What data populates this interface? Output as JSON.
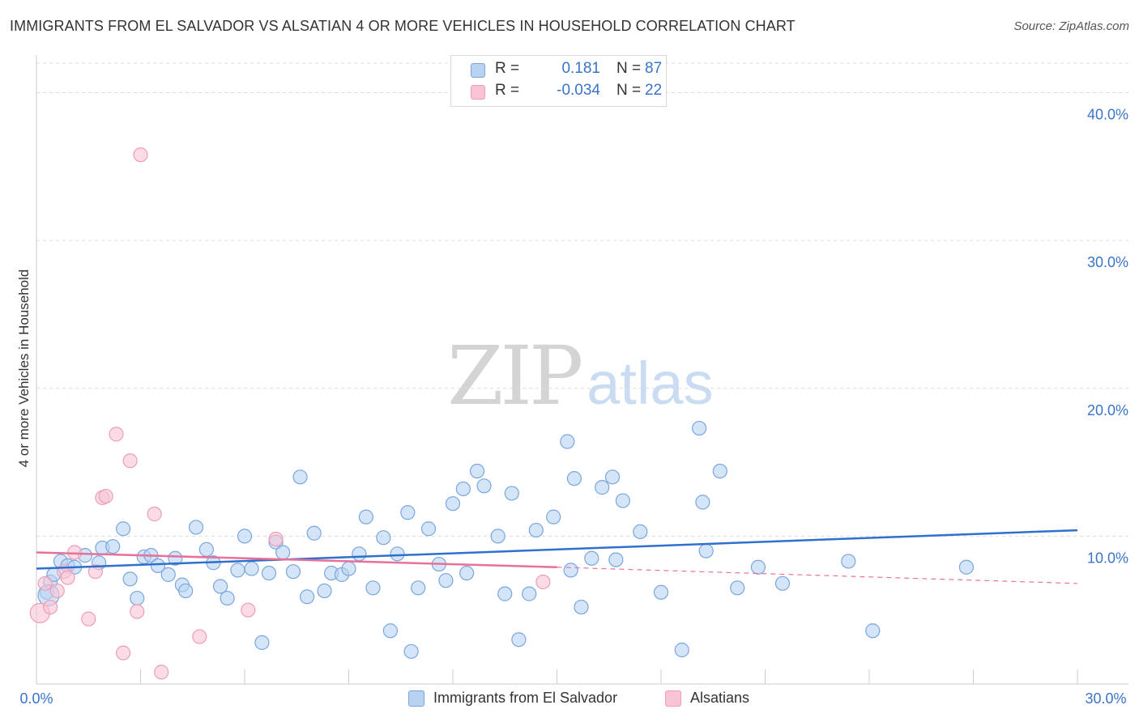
{
  "title": "IMMIGRANTS FROM EL SALVADOR VS ALSATIAN 4 OR MORE VEHICLES IN HOUSEHOLD CORRELATION CHART",
  "source": "Source: ZipAtlas.com",
  "watermark": {
    "zip": "ZIP",
    "atlas": "atlas"
  },
  "legend": {
    "rows": [
      {
        "r_label": "R =",
        "r_value": "0.181",
        "n_label": "N =",
        "n_value": "87"
      },
      {
        "r_label": "R =",
        "r_value": "-0.034",
        "n_label": "N =",
        "n_value": "22"
      }
    ]
  },
  "bottom_legend": {
    "blue": "Immigrants from El Salvador",
    "pink": "Alsatians"
  },
  "colors": {
    "blue_fill": "#b8d3f2",
    "blue_stroke": "#7aa6de",
    "blue_line": "#2f6fce",
    "pink_fill": "#f8c4d5",
    "pink_stroke": "#ee9cb8",
    "pink_line": "#e8709a",
    "tick_text": "#3a74c8",
    "grid": "#dcdcdc"
  },
  "chart_data": {
    "type": "scatter",
    "title": "IMMIGRANTS FROM EL SALVADOR VS ALSATIAN 4 OR MORE VEHICLES IN HOUSEHOLD CORRELATION CHART",
    "xlabel": "",
    "ylabel": "4 or more Vehicles in Household",
    "xlim": [
      0,
      30
    ],
    "ylim": [
      0,
      42
    ],
    "x_tick_labels": [
      "0.0%",
      "30.0%"
    ],
    "y_ticks": [
      10,
      20,
      30,
      40
    ],
    "y_tick_labels": [
      "10.0%",
      "20.0%",
      "30.0%",
      "40.0%"
    ],
    "grid": true,
    "legend_position": "top-center",
    "series": [
      {
        "name": "Immigrants from El Salvador",
        "color": "#b8d3f2",
        "points": [
          [
            0.3,
            6.2
          ],
          [
            0.4,
            6.9
          ],
          [
            0.5,
            7.4
          ],
          [
            0.7,
            8.3
          ],
          [
            0.9,
            8.0
          ],
          [
            1.1,
            7.9
          ],
          [
            1.4,
            8.7
          ],
          [
            1.8,
            8.2
          ],
          [
            1.9,
            9.2
          ],
          [
            2.2,
            9.3
          ],
          [
            2.5,
            10.5
          ],
          [
            2.7,
            7.1
          ],
          [
            2.9,
            5.8
          ],
          [
            3.1,
            8.6
          ],
          [
            3.3,
            8.7
          ],
          [
            3.5,
            8.0
          ],
          [
            3.8,
            7.4
          ],
          [
            4.0,
            8.5
          ],
          [
            4.2,
            6.7
          ],
          [
            4.3,
            6.3
          ],
          [
            4.6,
            10.6
          ],
          [
            4.9,
            9.1
          ],
          [
            5.1,
            8.2
          ],
          [
            5.3,
            6.6
          ],
          [
            5.5,
            5.8
          ],
          [
            5.8,
            7.7
          ],
          [
            6.0,
            10.0
          ],
          [
            6.2,
            7.8
          ],
          [
            6.5,
            2.8
          ],
          [
            6.7,
            7.5
          ],
          [
            6.9,
            9.6
          ],
          [
            7.1,
            8.9
          ],
          [
            7.4,
            7.6
          ],
          [
            7.6,
            14.0
          ],
          [
            7.8,
            5.9
          ],
          [
            8.0,
            10.2
          ],
          [
            8.3,
            6.3
          ],
          [
            8.5,
            7.5
          ],
          [
            8.8,
            7.4
          ],
          [
            9.0,
            7.8
          ],
          [
            9.3,
            8.8
          ],
          [
            9.5,
            11.3
          ],
          [
            9.7,
            6.5
          ],
          [
            10.0,
            9.9
          ],
          [
            10.2,
            3.6
          ],
          [
            10.4,
            8.8
          ],
          [
            10.7,
            11.6
          ],
          [
            10.8,
            2.2
          ],
          [
            11.0,
            6.5
          ],
          [
            11.3,
            10.5
          ],
          [
            11.6,
            8.1
          ],
          [
            11.8,
            7.0
          ],
          [
            12.0,
            12.2
          ],
          [
            12.3,
            13.2
          ],
          [
            12.4,
            7.5
          ],
          [
            12.7,
            14.4
          ],
          [
            12.9,
            13.4
          ],
          [
            13.3,
            10.0
          ],
          [
            13.5,
            6.1
          ],
          [
            13.7,
            12.9
          ],
          [
            13.9,
            3.0
          ],
          [
            14.2,
            6.1
          ],
          [
            14.4,
            10.4
          ],
          [
            14.9,
            11.3
          ],
          [
            15.3,
            16.4
          ],
          [
            15.4,
            7.7
          ],
          [
            15.5,
            13.9
          ],
          [
            15.7,
            5.2
          ],
          [
            16.0,
            8.5
          ],
          [
            16.3,
            13.3
          ],
          [
            16.6,
            14.0
          ],
          [
            16.7,
            8.4
          ],
          [
            16.9,
            12.4
          ],
          [
            17.4,
            10.3
          ],
          [
            18.0,
            6.2
          ],
          [
            18.6,
            2.3
          ],
          [
            19.1,
            17.3
          ],
          [
            19.2,
            12.3
          ],
          [
            19.3,
            9.0
          ],
          [
            19.7,
            14.4
          ],
          [
            20.2,
            6.5
          ],
          [
            20.8,
            7.9
          ],
          [
            21.5,
            6.8
          ],
          [
            23.4,
            8.3
          ],
          [
            24.1,
            3.6
          ],
          [
            26.8,
            7.9
          ],
          [
            0.35,
            6.0
          ]
        ]
      },
      {
        "name": "Alsatians",
        "color": "#f8c4d5",
        "points": [
          [
            0.1,
            4.8
          ],
          [
            0.25,
            6.8
          ],
          [
            0.4,
            5.2
          ],
          [
            0.6,
            6.3
          ],
          [
            0.8,
            7.6
          ],
          [
            0.9,
            7.2
          ],
          [
            1.1,
            8.9
          ],
          [
            1.5,
            4.4
          ],
          [
            1.7,
            7.6
          ],
          [
            1.9,
            12.6
          ],
          [
            2.0,
            12.7
          ],
          [
            2.3,
            16.9
          ],
          [
            2.5,
            2.1
          ],
          [
            2.7,
            15.1
          ],
          [
            2.9,
            4.9
          ],
          [
            3.0,
            35.8
          ],
          [
            3.4,
            11.5
          ],
          [
            3.6,
            0.8
          ],
          [
            4.7,
            3.2
          ],
          [
            6.1,
            5.0
          ],
          [
            6.9,
            9.8
          ],
          [
            14.6,
            6.9
          ]
        ]
      }
    ],
    "trendlines": [
      {
        "name": "Immigrants from El Salvador",
        "x": [
          0,
          30
        ],
        "y": [
          7.8,
          10.4
        ],
        "style": "solid"
      },
      {
        "name": "Alsatians",
        "x": [
          0,
          15
        ],
        "y": [
          8.9,
          7.9
        ],
        "style": "solid"
      },
      {
        "name": "Alsatians",
        "x": [
          15,
          30
        ],
        "y": [
          7.9,
          6.8
        ],
        "style": "dashed"
      }
    ]
  }
}
